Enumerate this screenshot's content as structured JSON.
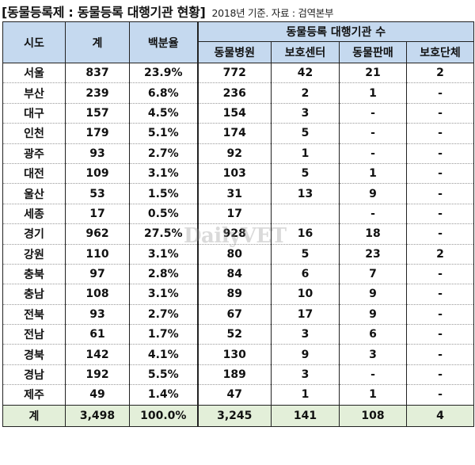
{
  "caption": {
    "title": "[동물등록제 : 동물등록 대행기관 현황]",
    "note": "2018년 기준. 자료 : 검역본부"
  },
  "table": {
    "headers": {
      "sido": "시도",
      "total": "계",
      "percent": "백분율",
      "group": "동물등록 대행기관 수",
      "hospital": "동물병원",
      "shelter": "보호센터",
      "shop": "동물판매",
      "org": "보호단체"
    },
    "rows": [
      {
        "sido": "서울",
        "total": "837",
        "percent": "23.9%",
        "hospital": "772",
        "shelter": "42",
        "shop": "21",
        "org": "2"
      },
      {
        "sido": "부산",
        "total": "239",
        "percent": "6.8%",
        "hospital": "236",
        "shelter": "2",
        "shop": "1",
        "org": "-"
      },
      {
        "sido": "대구",
        "total": "157",
        "percent": "4.5%",
        "hospital": "154",
        "shelter": "3",
        "shop": "-",
        "org": "-"
      },
      {
        "sido": "인천",
        "total": "179",
        "percent": "5.1%",
        "hospital": "174",
        "shelter": "5",
        "shop": "-",
        "org": "-"
      },
      {
        "sido": "광주",
        "total": "93",
        "percent": "2.7%",
        "hospital": "92",
        "shelter": "1",
        "shop": "-",
        "org": "-"
      },
      {
        "sido": "대전",
        "total": "109",
        "percent": "3.1%",
        "hospital": "103",
        "shelter": "5",
        "shop": "1",
        "org": "-"
      },
      {
        "sido": "울산",
        "total": "53",
        "percent": "1.5%",
        "hospital": "31",
        "shelter": "13",
        "shop": "9",
        "org": "-"
      },
      {
        "sido": "세종",
        "total": "17",
        "percent": "0.5%",
        "hospital": "17",
        "shelter": "",
        "shop": "-",
        "org": "-"
      },
      {
        "sido": "경기",
        "total": "962",
        "percent": "27.5%",
        "hospital": "928",
        "shelter": "16",
        "shop": "18",
        "org": "-"
      },
      {
        "sido": "강원",
        "total": "110",
        "percent": "3.1%",
        "hospital": "80",
        "shelter": "5",
        "shop": "23",
        "org": "2"
      },
      {
        "sido": "충북",
        "total": "97",
        "percent": "2.8%",
        "hospital": "84",
        "shelter": "6",
        "shop": "7",
        "org": "-"
      },
      {
        "sido": "충남",
        "total": "108",
        "percent": "3.1%",
        "hospital": "89",
        "shelter": "10",
        "shop": "9",
        "org": "-"
      },
      {
        "sido": "전북",
        "total": "93",
        "percent": "2.7%",
        "hospital": "67",
        "shelter": "17",
        "shop": "9",
        "org": "-"
      },
      {
        "sido": "전남",
        "total": "61",
        "percent": "1.7%",
        "hospital": "52",
        "shelter": "3",
        "shop": "6",
        "org": "-"
      },
      {
        "sido": "경북",
        "total": "142",
        "percent": "4.1%",
        "hospital": "130",
        "shelter": "9",
        "shop": "3",
        "org": "-"
      },
      {
        "sido": "경남",
        "total": "192",
        "percent": "5.5%",
        "hospital": "189",
        "shelter": "3",
        "shop": "-",
        "org": "-"
      },
      {
        "sido": "제주",
        "total": "49",
        "percent": "1.4%",
        "hospital": "47",
        "shelter": "1",
        "shop": "1",
        "org": "-"
      }
    ],
    "footer": {
      "sido": "계",
      "total": "3,498",
      "percent": "100.0%",
      "hospital": "3,245",
      "shelter": "141",
      "shop": "108",
      "org": "4"
    }
  },
  "watermark": "DailyVET",
  "colors": {
    "header_bg": "#c5d9ef",
    "footer_bg": "#e3efd9"
  }
}
